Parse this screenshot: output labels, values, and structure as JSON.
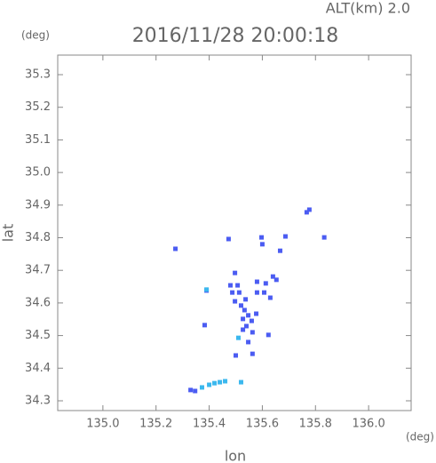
{
  "chart_data": {
    "type": "scatter",
    "title": "2016/11/28 20:00:18",
    "subtitle": "ALT(km) 2.0",
    "x_label": "lon",
    "y_label": "lat",
    "x_unit": "(deg)",
    "y_unit": "(deg)",
    "xlim": [
      134.83,
      136.16
    ],
    "ylim": [
      34.27,
      35.36
    ],
    "xticks": [
      {
        "value": 135.0,
        "label": "135.0"
      },
      135.2,
      135.4,
      135.6,
      135.8,
      {
        "value": 136.0,
        "label": "136.0"
      }
    ],
    "yticks": [
      34.3,
      34.4,
      34.5,
      34.6,
      34.7,
      34.8,
      34.9,
      {
        "value": 35.0,
        "label": "35.0"
      },
      35.1,
      35.2,
      35.3
    ],
    "series": [
      {
        "color": "#4b5cf2",
        "x": [
          135.273,
          135.473,
          135.597,
          135.6,
          135.687,
          135.767,
          135.777,
          135.833,
          135.667,
          135.497,
          135.39,
          135.48,
          135.507,
          135.513,
          135.487,
          135.537,
          135.497,
          135.58,
          135.613,
          135.64,
          135.653,
          135.607,
          135.58,
          135.63,
          135.52,
          135.533,
          135.547,
          135.527,
          135.56,
          135.54,
          135.563,
          135.527,
          135.547,
          135.577,
          135.383,
          135.623,
          135.5,
          135.563,
          135.33,
          135.347
        ],
        "y": [
          34.766,
          34.796,
          34.801,
          34.78,
          34.804,
          34.878,
          34.886,
          34.801,
          34.76,
          34.692,
          34.638,
          34.654,
          34.654,
          34.632,
          34.632,
          34.611,
          34.605,
          34.665,
          34.66,
          34.681,
          34.671,
          34.632,
          34.632,
          34.616,
          34.592,
          34.578,
          34.562,
          34.551,
          34.545,
          34.529,
          34.51,
          34.518,
          34.48,
          34.567,
          34.532,
          34.502,
          34.439,
          34.444,
          34.333,
          34.33
        ]
      },
      {
        "color": "#3bb8ee",
        "x": [
          135.51,
          135.39,
          135.373,
          135.4,
          135.42,
          135.44,
          135.46,
          135.52
        ],
        "y": [
          34.493,
          34.641,
          34.341,
          34.349,
          34.354,
          34.357,
          34.36,
          34.357
        ]
      }
    ]
  }
}
